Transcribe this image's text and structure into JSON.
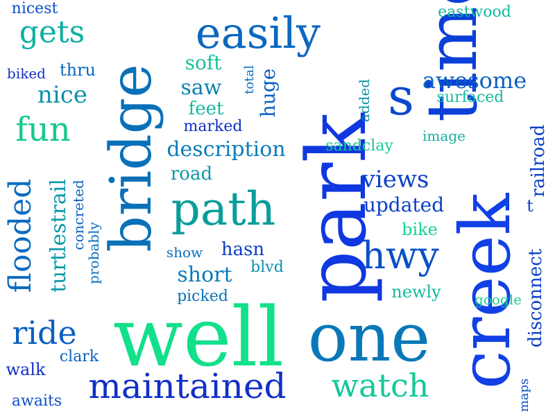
{
  "words": [
    {
      "text": "time",
      "color": "#0b3fd8"
    },
    {
      "text": "park",
      "color": "#1038e0"
    },
    {
      "text": "creek",
      "color": "#1040e6"
    },
    {
      "text": "bridge",
      "color": "#0a70b8"
    },
    {
      "text": "well",
      "color": "#12e08a"
    },
    {
      "text": "one",
      "color": "#0a78b8"
    },
    {
      "text": "path",
      "color": "#0a9e9a"
    },
    {
      "text": "easily",
      "color": "#0a68c0"
    },
    {
      "text": "s",
      "color": "#0a48d0"
    },
    {
      "text": "maintained",
      "color": "#1030c8"
    },
    {
      "text": "watch",
      "color": "#14c89a"
    },
    {
      "text": "hwy",
      "color": "#0a50c8"
    },
    {
      "text": "fun",
      "color": "#16c88e"
    },
    {
      "text": "ride",
      "color": "#0a60c0"
    },
    {
      "text": "gets",
      "color": "#0ab0a0"
    },
    {
      "text": "flooded",
      "color": "#0a6cc0"
    },
    {
      "text": "awesome",
      "color": "#0a60c0"
    },
    {
      "text": "views",
      "color": "#0a40c8"
    },
    {
      "text": "updated",
      "color": "#0a40c8"
    },
    {
      "text": "description",
      "color": "#0a7cb8"
    },
    {
      "text": "nice",
      "color": "#0a90a8"
    },
    {
      "text": "turtlestrail",
      "color": "#0a9aa8"
    },
    {
      "text": "saw",
      "color": "#0a80b0"
    },
    {
      "text": "huge",
      "color": "#0a60c0"
    },
    {
      "text": "short",
      "color": "#0a78b8"
    },
    {
      "text": "hasn",
      "color": "#0a40c8"
    },
    {
      "text": "soft",
      "color": "#16c09a"
    },
    {
      "text": "feet",
      "color": "#14b8a0"
    },
    {
      "text": "road",
      "color": "#0a98a8"
    },
    {
      "text": "railroad",
      "color": "#0a40c8"
    },
    {
      "text": "disconnect",
      "color": "#0a40c8"
    },
    {
      "text": "eastwood",
      "color": "#14b8a0"
    },
    {
      "text": "nicest",
      "color": "#0a50c8"
    },
    {
      "text": "thru",
      "color": "#0a68c0"
    },
    {
      "text": "biked",
      "color": "#1030c8"
    },
    {
      "text": "total",
      "color": "#0a70c0"
    },
    {
      "text": "added",
      "color": "#0a90a8"
    },
    {
      "text": "surfaced",
      "color": "#14b8a0"
    },
    {
      "text": "marked",
      "color": "#1030c8"
    },
    {
      "text": "sandclay",
      "color": "#16c89a"
    },
    {
      "text": "image",
      "color": "#14b0a0"
    },
    {
      "text": "bike",
      "color": "#18d098"
    },
    {
      "text": "t",
      "color": "#0a40c8"
    },
    {
      "text": "concreted",
      "color": "#0a60c0"
    },
    {
      "text": "probably",
      "color": "#0a70c0"
    },
    {
      "text": "show",
      "color": "#0a70b8"
    },
    {
      "text": "blvd",
      "color": "#0a90a8"
    },
    {
      "text": "picked",
      "color": "#0a70b8"
    },
    {
      "text": "newly",
      "color": "#14b8a0"
    },
    {
      "text": "google",
      "color": "#18d098"
    },
    {
      "text": "walk",
      "color": "#1030c8"
    },
    {
      "text": "clark",
      "color": "#0a60c0"
    },
    {
      "text": "awaits",
      "color": "#0a50c8"
    },
    {
      "text": "maps",
      "color": "#0a50c8"
    }
  ]
}
